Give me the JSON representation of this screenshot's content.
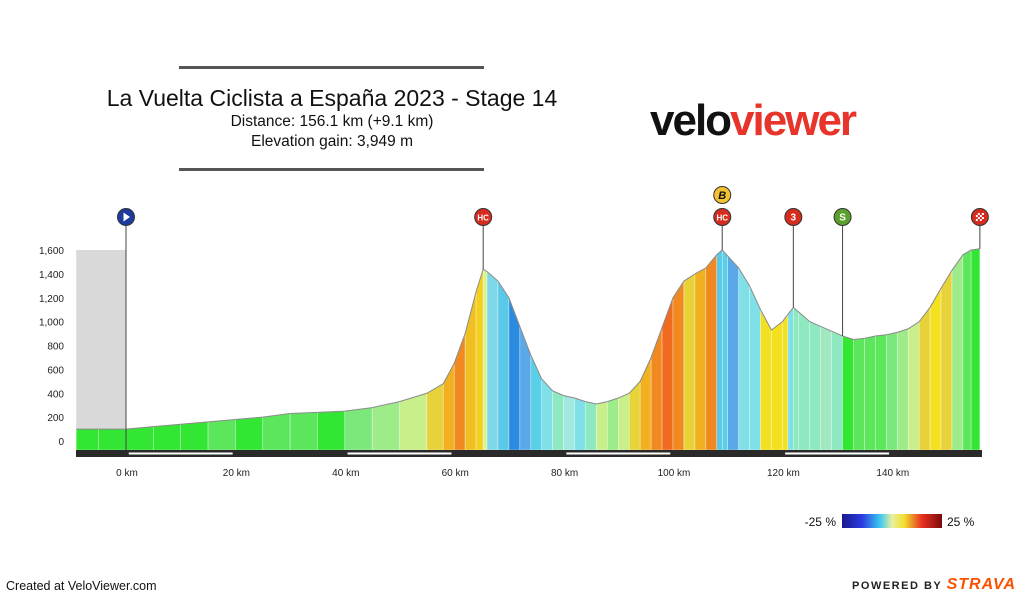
{
  "header": {
    "title": "La Vuelta Ciclista a España 2023 - Stage 14",
    "distance": "Distance: 156.1 km (+9.1 km)",
    "elevation_gain": "Elevation gain: 3,949 m"
  },
  "logo": {
    "part1": "velo",
    "part2": "viewer",
    "color_dark": "#111111",
    "color_red": "#e8352b"
  },
  "footer": {
    "created_at": "Created at VeloViewer.com",
    "powered_by": "POWERED BY",
    "brand": "STRAVA"
  },
  "gradient_legend": {
    "min_label": "-25 %",
    "max_label": "25 %"
  },
  "chart_data": {
    "type": "area",
    "title": "La Vuelta Ciclista a España 2023 - Stage 14",
    "xlabel": "",
    "ylabel": "",
    "x_unit": "km",
    "xlim": [
      -9.1,
      156.1
    ],
    "ylim": [
      0,
      1600
    ],
    "x_ticks": [
      0,
      20,
      40,
      60,
      80,
      100,
      120,
      140
    ],
    "x_tick_labels": [
      "0 km",
      "20 km",
      "40 km",
      "60 km",
      "80 km",
      "100 km",
      "120 km",
      "140 km"
    ],
    "y_ticks": [
      0,
      200,
      400,
      600,
      800,
      1000,
      1200,
      1400,
      1600
    ],
    "y_tick_labels": [
      "0",
      "200",
      "400",
      "600",
      "800",
      "1,000",
      "1,200",
      "1,400",
      "1,600"
    ],
    "neutral_zone_km": [
      -9.1,
      0
    ],
    "points": [
      [
        -9.1,
        100
      ],
      [
        -5,
        100
      ],
      [
        0,
        100
      ],
      [
        5,
        120
      ],
      [
        10,
        140
      ],
      [
        15,
        160
      ],
      [
        20,
        180
      ],
      [
        25,
        200
      ],
      [
        30,
        230
      ],
      [
        35,
        240
      ],
      [
        40,
        250
      ],
      [
        45,
        280
      ],
      [
        50,
        330
      ],
      [
        55,
        400
      ],
      [
        58,
        480
      ],
      [
        60,
        650
      ],
      [
        62,
        900
      ],
      [
        64,
        1250
      ],
      [
        65.3,
        1440
      ],
      [
        66,
        1420
      ],
      [
        68,
        1340
      ],
      [
        70,
        1200
      ],
      [
        72,
        960
      ],
      [
        74,
        720
      ],
      [
        76,
        520
      ],
      [
        78,
        420
      ],
      [
        80,
        380
      ],
      [
        82,
        360
      ],
      [
        84,
        330
      ],
      [
        86,
        310
      ],
      [
        88,
        330
      ],
      [
        90,
        360
      ],
      [
        92,
        400
      ],
      [
        94,
        500
      ],
      [
        96,
        700
      ],
      [
        98,
        950
      ],
      [
        100,
        1200
      ],
      [
        102,
        1340
      ],
      [
        104,
        1400
      ],
      [
        106,
        1450
      ],
      [
        108,
        1560
      ],
      [
        109,
        1600
      ],
      [
        110,
        1550
      ],
      [
        112,
        1450
      ],
      [
        114,
        1300
      ],
      [
        116,
        1100
      ],
      [
        118,
        930
      ],
      [
        120,
        1000
      ],
      [
        121,
        1060
      ],
      [
        122,
        1120
      ],
      [
        123,
        1080
      ],
      [
        125,
        1000
      ],
      [
        127,
        960
      ],
      [
        129,
        920
      ],
      [
        131,
        880
      ],
      [
        133,
        850
      ],
      [
        135,
        860
      ],
      [
        137,
        880
      ],
      [
        139,
        890
      ],
      [
        141,
        910
      ],
      [
        143,
        940
      ],
      [
        145,
        1000
      ],
      [
        147,
        1120
      ],
      [
        149,
        1280
      ],
      [
        151,
        1430
      ],
      [
        153,
        1560
      ],
      [
        154.5,
        1600
      ],
      [
        156.1,
        1610
      ]
    ],
    "segment_colors": [
      "#33e633",
      "#33e633",
      "#33e633",
      "#33e633",
      "#33e633",
      "#5ce65c",
      "#33e633",
      "#5ce65c",
      "#5ce65c",
      "#33e633",
      "#7be87b",
      "#9eeb8a",
      "#c8ef8a",
      "#e8d23a",
      "#f0b020",
      "#f08a20",
      "#f0c020",
      "#f3d020",
      "#d9f28a",
      "#7fd8e8",
      "#5ac8e8",
      "#2b8be0",
      "#5aa8e8",
      "#5ad0e8",
      "#7fe0e8",
      "#8ee8c0",
      "#a0e8e0",
      "#7fe0e8",
      "#8ee8c0",
      "#c8ef8a",
      "#9eeb8a",
      "#c8ef8a",
      "#e8d23a",
      "#f0b020",
      "#f08a20",
      "#f06a20",
      "#f08a20",
      "#e8d23a",
      "#f0b020",
      "#f08a20",
      "#5ac8e8",
      "#5ad0e8",
      "#5aa8e8",
      "#7fe0e8",
      "#7fe0e8",
      "#f3e020",
      "#f3e020",
      "#f3e020",
      "#7fe0e8",
      "#8ee8c0",
      "#8ee8c0",
      "#8ee8c0",
      "#a0e8c0",
      "#8ee8c0",
      "#33e633",
      "#5ce65c",
      "#5ce65c",
      "#5ce65c",
      "#7be87b",
      "#9eeb8a",
      "#c8ef8a",
      "#e8d23a",
      "#f3e020",
      "#e8d23a",
      "#9eeb8a",
      "#5ce65c"
    ],
    "markers": [
      {
        "km": 0,
        "label": "",
        "type": "start",
        "color": "#1e3a9c"
      },
      {
        "km": 65.3,
        "label": "HC",
        "type": "climb",
        "color": "#d62c1f"
      },
      {
        "km": 109,
        "label": "HC",
        "type": "climb",
        "color": "#d62c1f"
      },
      {
        "km": 109,
        "label": "B",
        "type": "bonus",
        "color": "#f2c233"
      },
      {
        "km": 122,
        "label": "3",
        "type": "climb",
        "color": "#d62c1f"
      },
      {
        "km": 131,
        "label": "S",
        "type": "sprint",
        "color": "#5aa02c"
      },
      {
        "km": 156.1,
        "label": "",
        "type": "finish",
        "color": "#d62c1f"
      }
    ]
  }
}
